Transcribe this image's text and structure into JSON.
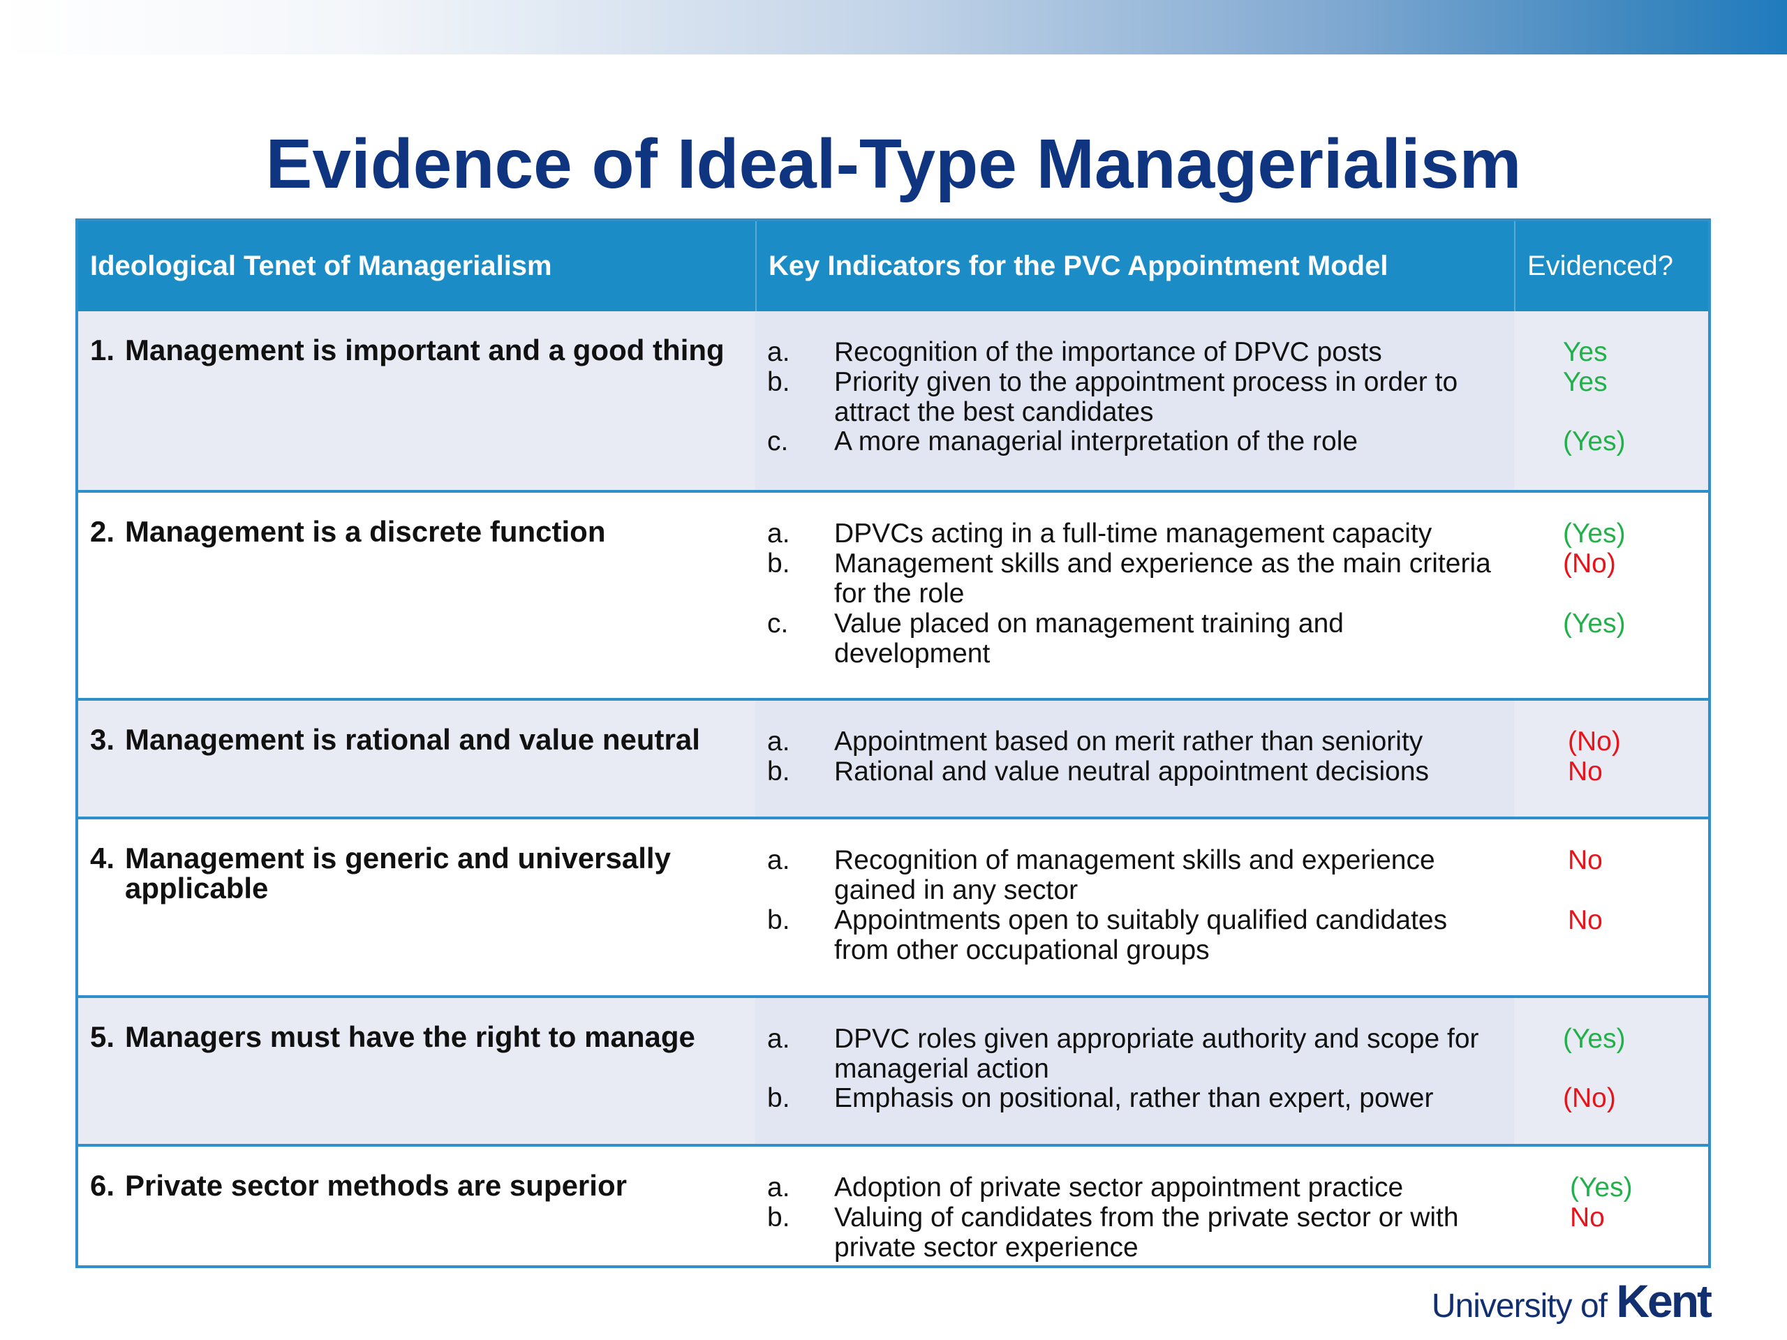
{
  "title": "Evidence of Ideal-Type Managerialism",
  "table": {
    "headers": [
      "Ideological Tenet of Managerialism",
      "Key Indicators for the PVC Appointment Model",
      "Evidenced?"
    ],
    "rows": [
      {
        "num": "1.",
        "tenet": "Management is important and a good thing",
        "indicators": [
          {
            "letter": "a.",
            "text": "Recognition of the importance of DPVC posts",
            "evidence": "Yes"
          },
          {
            "letter": "b.",
            "text": "Priority given to the appointment process in order to attract the best candidates",
            "evidence": "Yes"
          },
          {
            "letter": "c.",
            "text": "A more managerial interpretation of the role",
            "evidence": "(Yes)"
          }
        ]
      },
      {
        "num": "2.",
        "tenet": "Management is a discrete function",
        "indicators": [
          {
            "letter": "a.",
            "text": "DPVCs acting in a full-time management capacity",
            "evidence": "(Yes)"
          },
          {
            "letter": "b.",
            "text": "Management skills and experience as the main criteria for the role",
            "evidence": "(No)"
          },
          {
            "letter": "c.",
            "text": "Value placed on management training and development",
            "evidence": "(Yes)"
          }
        ]
      },
      {
        "num": "3.",
        "tenet": "Management is rational and value neutral",
        "indicators": [
          {
            "letter": "a.",
            "text": "Appointment based on merit rather than seniority",
            "evidence": "(No)"
          },
          {
            "letter": "b.",
            "text": "Rational and value neutral appointment decisions",
            "evidence": "No"
          }
        ]
      },
      {
        "num": "4.",
        "tenet": "Management is generic and universally applicable",
        "indicators": [
          {
            "letter": "a.",
            "text": "Recognition of management skills and experience gained in any sector",
            "evidence": "No"
          },
          {
            "letter": "b.",
            "text": "Appointments open to suitably qualified candidates from other occupational groups",
            "evidence": "No"
          }
        ]
      },
      {
        "num": "5.",
        "tenet": "Managers must have the right to manage",
        "indicators": [
          {
            "letter": "a.",
            "text": "DPVC roles given appropriate authority and scope for managerial action",
            "evidence": "(Yes)"
          },
          {
            "letter": "b.",
            "text": "Emphasis on positional, rather than expert, power",
            "evidence": "(No)"
          }
        ]
      },
      {
        "num": "6.",
        "tenet": "Private sector methods are superior",
        "indicators": [
          {
            "letter": "a.",
            "text": "Adoption of private sector appointment practice",
            "evidence": "(Yes)"
          },
          {
            "letter": "b.",
            "text": "Valuing of candidates from the private sector or with private sector experience",
            "evidence": "No"
          }
        ]
      }
    ]
  },
  "logo": {
    "university": "University of",
    "name": "Kent"
  },
  "colors": {
    "title": "#0f3480",
    "header_bg": "#1b8cc6",
    "yes": "#22b04b",
    "no": "#e8141b"
  }
}
